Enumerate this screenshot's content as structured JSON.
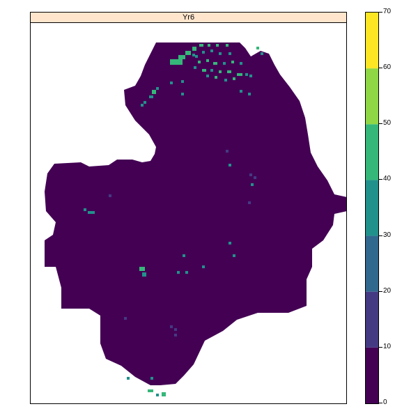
{
  "panel": {
    "strip_title": "Yr6"
  },
  "legend": {
    "bins": [
      {
        "min": 0,
        "max": 10,
        "color": "#440154"
      },
      {
        "min": 10,
        "max": 20,
        "color": "#443a83"
      },
      {
        "min": 20,
        "max": 30,
        "color": "#31688e"
      },
      {
        "min": 30,
        "max": 40,
        "color": "#21918c"
      },
      {
        "min": 40,
        "max": 50,
        "color": "#35b779"
      },
      {
        "min": 50,
        "max": 60,
        "color": "#8fd744"
      },
      {
        "min": 60,
        "max": 70,
        "color": "#fde725"
      }
    ],
    "tick_labels": [
      "0",
      "10",
      "20",
      "30",
      "40",
      "50",
      "60",
      "70"
    ]
  },
  "map": {
    "background_value_class": "0-10",
    "colors": {
      "low": "#440154",
      "mid1": "#443a83",
      "mid3": "#21918c",
      "mid4": "#35b779"
    }
  }
}
